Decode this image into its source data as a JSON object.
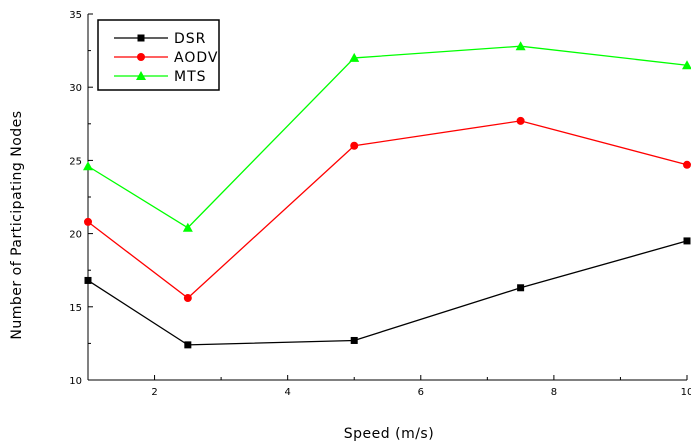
{
  "chart_data": {
    "type": "line",
    "xlabel": "Speed (m/s)",
    "ylabel": "Number of Participating Nodes",
    "xlim": [
      1,
      10
    ],
    "ylim": [
      10,
      35
    ],
    "xticks": [
      2,
      4,
      6,
      8,
      10
    ],
    "yticks": [
      10,
      15,
      20,
      25,
      30,
      35
    ],
    "xtick_labels": [
      "2",
      "4",
      "6",
      "8",
      "10"
    ],
    "ytick_labels": [
      "10",
      "15",
      "20",
      "25",
      "30",
      "35"
    ],
    "x": [
      1,
      2.5,
      5,
      7.5,
      10
    ],
    "grid": false,
    "legend_position": "top-left",
    "series": [
      {
        "name": "DSR",
        "values": [
          16.8,
          12.4,
          12.7,
          16.3,
          19.5
        ],
        "color": "#000000",
        "marker": "square"
      },
      {
        "name": "AODV",
        "values": [
          20.8,
          15.6,
          26.0,
          27.7,
          24.7
        ],
        "color": "#ff0000",
        "marker": "circle"
      },
      {
        "name": "MTS",
        "values": [
          24.6,
          20.4,
          32.0,
          32.8,
          31.5
        ],
        "color": "#00ff00",
        "marker": "triangle"
      }
    ]
  }
}
